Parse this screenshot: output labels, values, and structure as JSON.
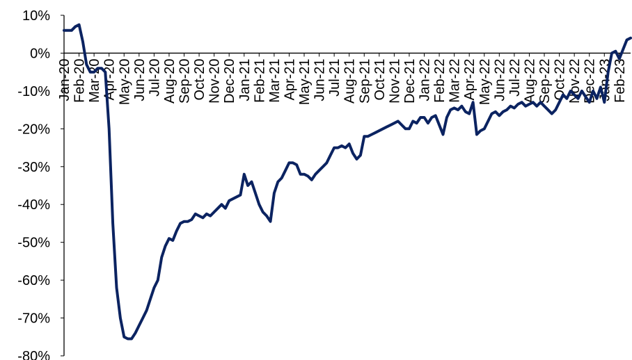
{
  "chart_data": {
    "type": "line",
    "categories": [
      "Jan-20",
      null,
      null,
      null,
      "Feb-20",
      null,
      null,
      null,
      "Mar-20",
      null,
      null,
      null,
      "Apr-20",
      null,
      null,
      null,
      "May-20",
      null,
      null,
      null,
      "Jun-20",
      null,
      null,
      null,
      "Jul-20",
      null,
      null,
      null,
      "Aug-20",
      null,
      null,
      null,
      "Sep-20",
      null,
      null,
      null,
      "Oct-20",
      null,
      null,
      null,
      "Nov-20",
      null,
      null,
      null,
      "Dec-20",
      null,
      null,
      null,
      "Jan-21",
      null,
      null,
      null,
      "Feb-21",
      null,
      null,
      null,
      "Mar-21",
      null,
      null,
      null,
      "Apr-21",
      null,
      null,
      null,
      "May-21",
      null,
      null,
      null,
      "Jun-21",
      null,
      null,
      null,
      "Jul-21",
      null,
      null,
      null,
      "Aug-21",
      null,
      null,
      null,
      "Sep-21",
      null,
      null,
      null,
      "Oct-21",
      null,
      null,
      null,
      "Nov-21",
      null,
      null,
      null,
      "Dec-21",
      null,
      null,
      null,
      "Jan-22",
      null,
      null,
      null,
      "Feb-22",
      null,
      null,
      null,
      "Mar-22",
      null,
      null,
      null,
      "Apr-22",
      null,
      null,
      null,
      "May-22",
      null,
      null,
      null,
      "Jun-22",
      null,
      null,
      null,
      "Jul-22",
      null,
      null,
      null,
      "Aug-22",
      null,
      null,
      null,
      "Sep-22",
      null,
      null,
      null,
      "Oct-22",
      null,
      null,
      null,
      "Nov-22",
      null,
      null,
      null,
      "Dec-22",
      null,
      null,
      null,
      "Jan-23",
      null,
      null,
      null,
      "Feb-23",
      null,
      null,
      null
    ],
    "values": [
      6,
      6,
      6,
      7,
      7.5,
      3,
      -3,
      -5,
      -5,
      -4,
      -4,
      -5,
      -20,
      -45,
      -62,
      -70,
      -75,
      -75.5,
      -75.5,
      -74,
      -72,
      -70,
      -68,
      -65,
      -62,
      -60,
      -54,
      -51,
      -49,
      -49.5,
      -47,
      -45,
      -44.5,
      -44.5,
      -44,
      -42.5,
      -43,
      -43.5,
      -42.5,
      -43,
      -42,
      -41,
      -40,
      -41,
      -39,
      -38.5,
      -38,
      -37.5,
      -32,
      -35,
      -34,
      -37,
      -40,
      -42,
      -43,
      -44.5,
      -37,
      -34,
      -33,
      -31,
      -29,
      -29,
      -29.5,
      -32,
      -32,
      -32.5,
      -33.5,
      -32,
      -31,
      -30,
      -29,
      -27,
      -25,
      -25,
      -24.5,
      -25,
      -24,
      -26.5,
      -28,
      -27,
      -22,
      -22,
      -21.5,
      -21,
      -20.5,
      -20,
      -19.5,
      -19,
      -18.5,
      -18,
      -19,
      -20,
      -20,
      -18,
      -18.5,
      -17,
      -17,
      -18.5,
      -17,
      -16.5,
      -19,
      -21.5,
      -17,
      -15,
      -14.5,
      -15,
      -14,
      -15.5,
      -16,
      -13,
      -21.5,
      -20.5,
      -20,
      -18,
      -16,
      -15.5,
      -16.5,
      -15.5,
      -15,
      -14,
      -14.5,
      -13.5,
      -13,
      -14,
      -13.5,
      -13,
      -14,
      -13,
      -14,
      -15,
      -16,
      -15,
      -13,
      -11,
      -12,
      -10,
      -11,
      -12,
      -10,
      -11.5,
      -13,
      -10,
      -12,
      -9,
      -13,
      -5,
      0,
      0.5,
      -1.5,
      1,
      3.5,
      4
    ],
    "color": "#0b2361",
    "ylim": [
      -80,
      10
    ],
    "yticks": [
      {
        "value": -80,
        "label": "-80%"
      },
      {
        "value": -70,
        "label": "-70%"
      },
      {
        "value": -60,
        "label": "-60%"
      },
      {
        "value": -50,
        "label": "-50%"
      },
      {
        "value": -40,
        "label": "-40%"
      },
      {
        "value": -30,
        "label": "-30%"
      },
      {
        "value": -20,
        "label": "-20%"
      },
      {
        "value": -10,
        "label": "-10%"
      },
      {
        "value": 0,
        "label": "0%"
      },
      {
        "value": 10,
        "label": "10%"
      }
    ],
    "grid": false
  }
}
